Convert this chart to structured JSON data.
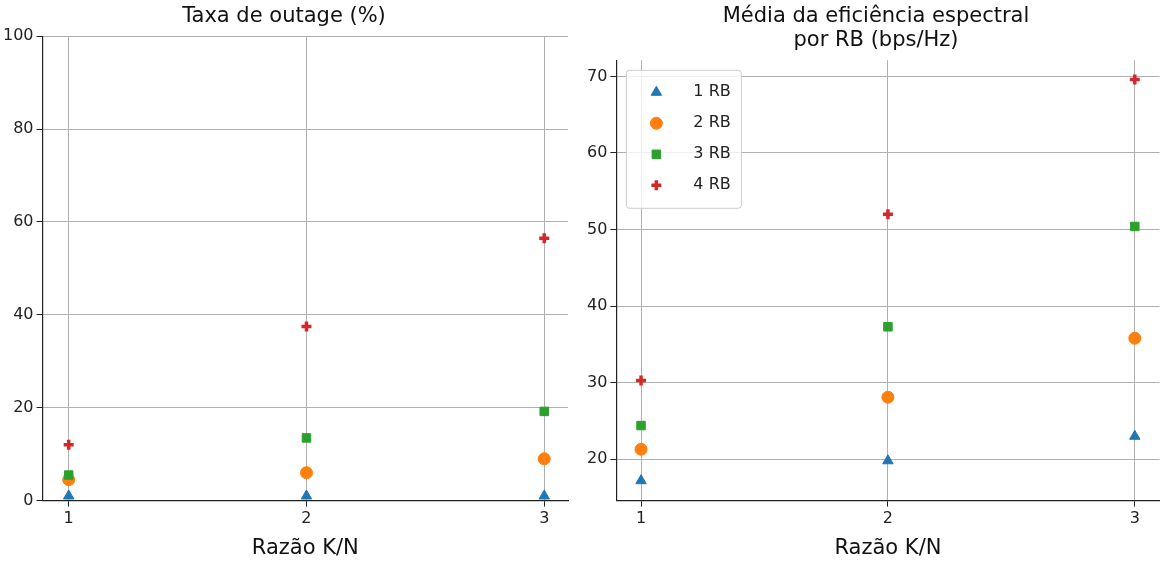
{
  "chart_data": [
    {
      "type": "scatter",
      "title": "Taxa de outage (%)",
      "xlabel": "Razão K/N",
      "x": [
        1,
        2,
        3
      ],
      "xlim": [
        0.89,
        3.1
      ],
      "xticks": [
        1,
        2,
        3
      ],
      "ylim": [
        0,
        100
      ],
      "yticks": [
        0,
        20,
        40,
        60,
        80,
        100
      ],
      "grid": true,
      "legend": false,
      "series": [
        {
          "color": "#1f77b4",
          "marker": "triangle",
          "values": [
            1,
            1,
            1
          ]
        },
        {
          "color": "#ff7f0e",
          "marker": "circle",
          "values": [
            4.5,
            6,
            9
          ]
        },
        {
          "color": "#2ca02c",
          "marker": "square",
          "values": [
            5.5,
            13.5,
            19.2
          ]
        },
        {
          "color": "#d62728",
          "marker": "cross",
          "values": [
            12,
            37.5,
            56.5
          ]
        }
      ]
    },
    {
      "type": "scatter",
      "title": "Média da eficiência espectral\npor RB (bps/Hz)",
      "xlabel": "Razão K/N",
      "x": [
        1,
        2,
        3
      ],
      "xlim": [
        0.9,
        3.1
      ],
      "xticks": [
        1,
        2,
        3
      ],
      "ylim": [
        14.6,
        72.1
      ],
      "yticks": [
        20,
        30,
        40,
        50,
        60,
        70
      ],
      "grid": true,
      "legend": "top left",
      "series": [
        {
          "name": "1 RB",
          "color": "#1f77b4",
          "marker": "triangle",
          "values": [
            17.2,
            19.8,
            23
          ]
        },
        {
          "name": "2 RB",
          "color": "#ff7f0e",
          "marker": "circle",
          "values": [
            21.3,
            28.1,
            35.8
          ]
        },
        {
          "name": "3 RB",
          "color": "#2ca02c",
          "marker": "square",
          "values": [
            24.4,
            37.3,
            50.4
          ]
        },
        {
          "name": "4 RB",
          "color": "#d62728",
          "marker": "cross",
          "values": [
            30.3,
            52,
            69.6
          ]
        }
      ]
    }
  ]
}
